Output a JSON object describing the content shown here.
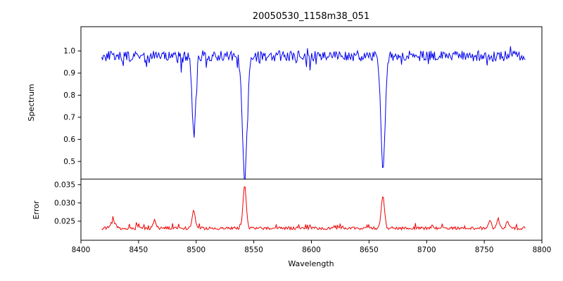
{
  "figure": {
    "background_color": "#ffffff",
    "axes_color": "#000000"
  },
  "chart_data": [
    {
      "type": "line",
      "panel": "spectrum",
      "title": "20050530_1158m38_051",
      "ylabel": "Spectrum",
      "xlim": [
        8400,
        8800
      ],
      "ylim": [
        0.42,
        1.11
      ],
      "yticks": [
        0.5,
        0.6,
        0.7,
        0.8,
        0.9,
        1.0
      ],
      "ytick_decimals": 1,
      "line_color": "#0000ee",
      "seed": 7,
      "x_start": 8418,
      "x_end": 8786,
      "x_step": 0.75,
      "base_level": 0.977,
      "noise_amplitude": 0.024,
      "spikes": [
        {
          "prob": 0.06,
          "amp": -0.06
        },
        {
          "prob": 0.05,
          "amp": 0.035
        }
      ],
      "absorption_lines": [
        {
          "center": 8498.0,
          "depth": 0.36,
          "sigma": 1.6
        },
        {
          "center": 8542.1,
          "depth": 0.545,
          "sigma": 2.1
        },
        {
          "center": 8662.1,
          "depth": 0.5,
          "sigma": 1.9
        }
      ],
      "grid": false,
      "legend": "none"
    },
    {
      "type": "line",
      "panel": "error",
      "ylabel": "Error",
      "xlabel": "Wavelength",
      "xlim": [
        8400,
        8800
      ],
      "ylim": [
        0.0198,
        0.0365
      ],
      "yticks": [
        0.025,
        0.03,
        0.035
      ],
      "ytick_decimals": 3,
      "xticks": [
        8400,
        8450,
        8500,
        8550,
        8600,
        8650,
        8700,
        8750,
        8800
      ],
      "line_color": "#ee0000",
      "seed": 11,
      "x_start": 8418,
      "x_end": 8786,
      "x_step": 0.75,
      "base_level": 0.0231,
      "noise_amplitude": 0.0004,
      "spikes": [
        {
          "prob": 0.08,
          "amp": 0.0014
        }
      ],
      "emission_peaks": [
        {
          "center": 8428,
          "height": 0.0018,
          "sigma": 2.0
        },
        {
          "center": 8464,
          "height": 0.0022,
          "sigma": 1.2
        },
        {
          "center": 8498,
          "height": 0.0048,
          "sigma": 1.3
        },
        {
          "center": 8542,
          "height": 0.0118,
          "sigma": 1.4
        },
        {
          "center": 8662,
          "height": 0.0088,
          "sigma": 1.4
        },
        {
          "center": 8755,
          "height": 0.0018,
          "sigma": 1.2
        },
        {
          "center": 8762,
          "height": 0.0028,
          "sigma": 1.0
        },
        {
          "center": 8770,
          "height": 0.0022,
          "sigma": 1.0
        }
      ],
      "grid": false,
      "legend": "none"
    }
  ]
}
